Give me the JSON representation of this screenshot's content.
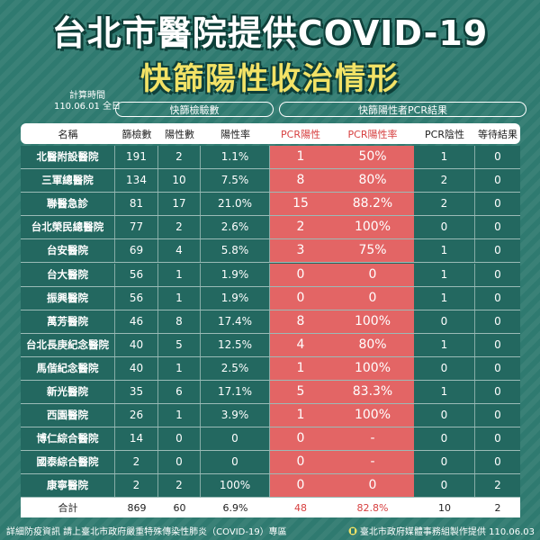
{
  "title": {
    "line1": "台北市醫院提供COVID-19",
    "line2": "快篩陽性收治情形"
  },
  "calc": {
    "label": "計算時間",
    "date": "110.06.01 全日"
  },
  "groups": {
    "rapid": "快篩檢驗數",
    "pcr": "快篩陽性者PCR結果"
  },
  "columns": [
    "名稱",
    "篩檢數",
    "陽性數",
    "陽性率",
    "PCR陽性",
    "PCR陽性率",
    "PCR陰性",
    "等待結果"
  ],
  "rows": [
    [
      "北醫附設醫院",
      "191",
      "2",
      "1.1%",
      "1",
      "50%",
      "1",
      "0"
    ],
    [
      "三軍總醫院",
      "134",
      "10",
      "7.5%",
      "8",
      "80%",
      "2",
      "0"
    ],
    [
      "聯醫急診",
      "81",
      "17",
      "21.0%",
      "15",
      "88.2%",
      "2",
      "0"
    ],
    [
      "台北榮民總醫院",
      "77",
      "2",
      "2.6%",
      "2",
      "100%",
      "0",
      "0"
    ],
    [
      "台安醫院",
      "69",
      "4",
      "5.8%",
      "3",
      "75%",
      "1",
      "0"
    ],
    [
      "台大醫院",
      "56",
      "1",
      "1.9%",
      "0",
      "0",
      "1",
      "0"
    ],
    [
      "振興醫院",
      "56",
      "1",
      "1.9%",
      "0",
      "0",
      "1",
      "0"
    ],
    [
      "萬芳醫院",
      "46",
      "8",
      "17.4%",
      "8",
      "100%",
      "0",
      "0"
    ],
    [
      "台北長庚紀念醫院",
      "40",
      "5",
      "12.5%",
      "4",
      "80%",
      "1",
      "0"
    ],
    [
      "馬偕紀念醫院",
      "40",
      "1",
      "2.5%",
      "1",
      "100%",
      "0",
      "0"
    ],
    [
      "新光醫院",
      "35",
      "6",
      "17.1%",
      "5",
      "83.3%",
      "1",
      "0"
    ],
    [
      "西園醫院",
      "26",
      "1",
      "3.9%",
      "1",
      "100%",
      "0",
      "0"
    ],
    [
      "博仁綜合醫院",
      "14",
      "0",
      "0",
      "0",
      "-",
      "0",
      "0"
    ],
    [
      "國泰綜合醫院",
      "2",
      "0",
      "0",
      "0",
      "-",
      "0",
      "0"
    ],
    [
      "康寧醫院",
      "2",
      "2",
      "100%",
      "0",
      "0",
      "0",
      "2"
    ]
  ],
  "total": [
    "合計",
    "869",
    "60",
    "6.9%",
    "48",
    "82.8%",
    "10",
    "2"
  ],
  "footer": {
    "left": "詳細防疫資訊 請上臺北市政府嚴重特殊傳染性肺炎（COVID-19）專區",
    "right": "臺北市政府媒體事務組製作提供 110.06.03"
  },
  "colors": {
    "background": "#2f7a70",
    "pcr_band": "#e36565",
    "title_yellow": "#f2e266"
  }
}
